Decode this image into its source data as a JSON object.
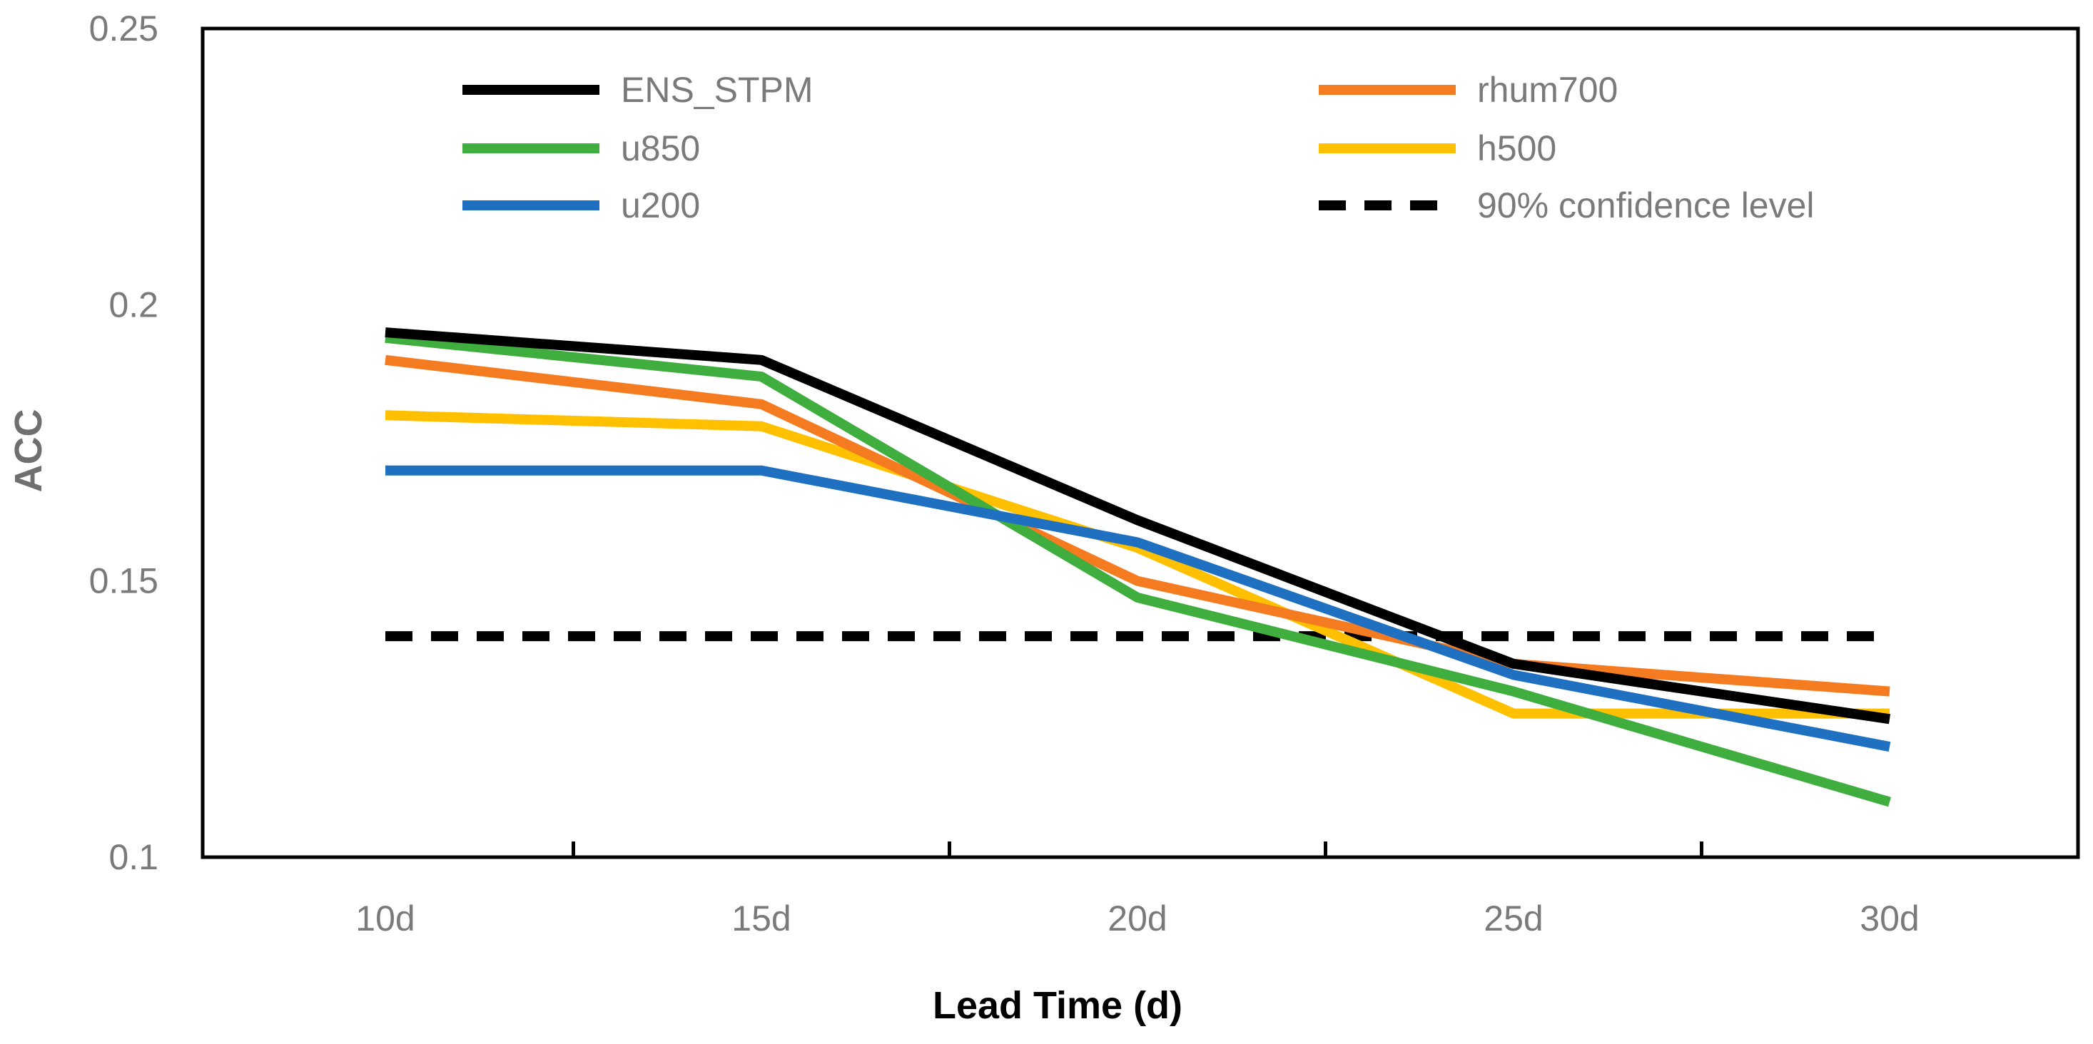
{
  "chart_data": {
    "type": "line",
    "title": "",
    "xlabel": "Lead Time (d)",
    "ylabel": "ACC",
    "categories": [
      "10d",
      "15d",
      "20d",
      "25d",
      "30d"
    ],
    "ylim": [
      0.1,
      0.25
    ],
    "yticks": [
      0.1,
      0.15,
      0.2,
      0.25
    ],
    "ytick_labels": [
      "0.1",
      "0.15",
      "0.2",
      "0.25"
    ],
    "grid": false,
    "legend_position": "top",
    "series": [
      {
        "name": "ENS_STPM",
        "values": [
          0.195,
          0.19,
          0.161,
          0.135,
          0.125
        ],
        "color": "#000000",
        "dash": "solid"
      },
      {
        "name": "rhum700",
        "values": [
          0.19,
          0.182,
          0.15,
          0.135,
          0.13
        ],
        "color": "#f47b20",
        "dash": "solid"
      },
      {
        "name": "u850",
        "values": [
          0.194,
          0.187,
          0.147,
          0.13,
          0.11
        ],
        "color": "#3fae3f",
        "dash": "solid"
      },
      {
        "name": "h500",
        "values": [
          0.18,
          0.178,
          0.156,
          0.126,
          0.126
        ],
        "color": "#ffc000",
        "dash": "solid"
      },
      {
        "name": "u200",
        "values": [
          0.17,
          0.17,
          0.157,
          0.133,
          0.12
        ],
        "color": "#1f70c1",
        "dash": "solid"
      },
      {
        "name": "90% confidence level",
        "values": [
          0.14,
          0.14,
          0.14,
          0.14,
          0.14
        ],
        "color": "#000000",
        "dash": "dashed"
      }
    ]
  }
}
